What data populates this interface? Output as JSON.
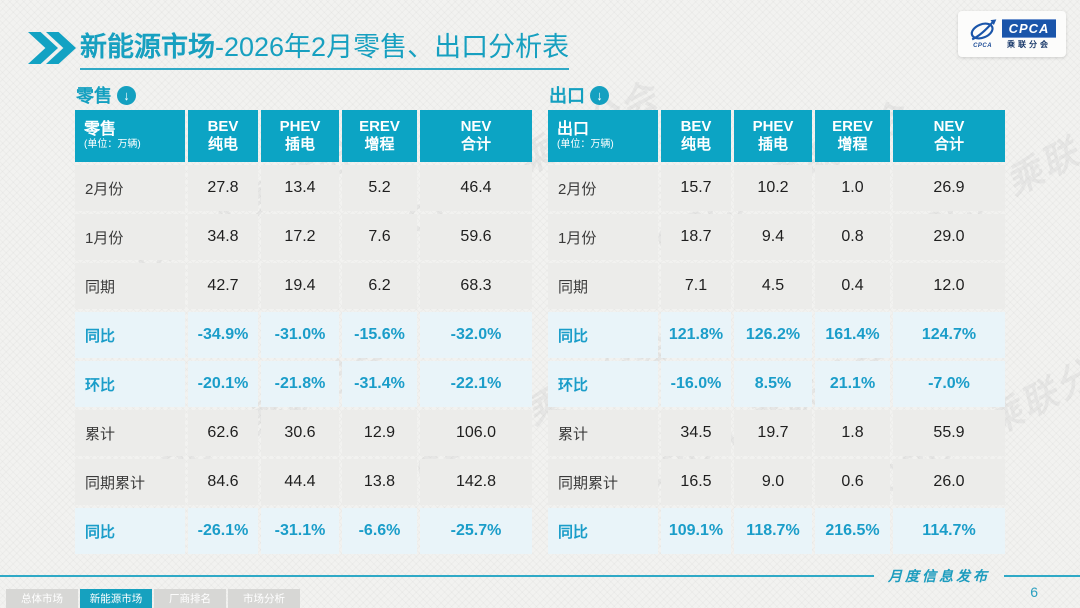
{
  "header": {
    "title_bold": "新能源市场",
    "title_rest": "-2026年2月零售、出口分析表",
    "logo": {
      "brand": "CPCA",
      "brand_sub": "乘联分会",
      "icon_caption": "CPCA"
    }
  },
  "tables": [
    {
      "section_label": "零售",
      "corner_label": "零售",
      "corner_unit": "(单位：万辆)",
      "columns": [
        {
          "line1": "BEV",
          "line2": "纯电"
        },
        {
          "line1": "PHEV",
          "line2": "插电"
        },
        {
          "line1": "EREV",
          "line2": "增程"
        },
        {
          "line1": "NEV",
          "line2": "合计"
        }
      ],
      "rows": [
        {
          "label": "2月份",
          "highlight": false,
          "values": [
            "27.8",
            "13.4",
            "5.2",
            "46.4"
          ]
        },
        {
          "label": "1月份",
          "highlight": false,
          "values": [
            "34.8",
            "17.2",
            "7.6",
            "59.6"
          ]
        },
        {
          "label": "同期",
          "highlight": false,
          "values": [
            "42.7",
            "19.4",
            "6.2",
            "68.3"
          ]
        },
        {
          "label": "同比",
          "highlight": true,
          "values": [
            "-34.9%",
            "-31.0%",
            "-15.6%",
            "-32.0%"
          ]
        },
        {
          "label": "环比",
          "highlight": true,
          "values": [
            "-20.1%",
            "-21.8%",
            "-31.4%",
            "-22.1%"
          ]
        },
        {
          "label": "累计",
          "highlight": false,
          "values": [
            "62.6",
            "30.6",
            "12.9",
            "106.0"
          ]
        },
        {
          "label": "同期累计",
          "highlight": false,
          "values": [
            "84.6",
            "44.4",
            "13.8",
            "142.8"
          ]
        },
        {
          "label": "同比",
          "highlight": true,
          "values": [
            "-26.1%",
            "-31.1%",
            "-6.6%",
            "-25.7%"
          ]
        }
      ]
    },
    {
      "section_label": "出口",
      "corner_label": "出口",
      "corner_unit": "(单位：万辆)",
      "columns": [
        {
          "line1": "BEV",
          "line2": "纯电"
        },
        {
          "line1": "PHEV",
          "line2": "插电"
        },
        {
          "line1": "EREV",
          "line2": "增程"
        },
        {
          "line1": "NEV",
          "line2": "合计"
        }
      ],
      "rows": [
        {
          "label": "2月份",
          "highlight": false,
          "values": [
            "15.7",
            "10.2",
            "1.0",
            "26.9"
          ]
        },
        {
          "label": "1月份",
          "highlight": false,
          "values": [
            "18.7",
            "9.4",
            "0.8",
            "29.0"
          ]
        },
        {
          "label": "同期",
          "highlight": false,
          "values": [
            "7.1",
            "4.5",
            "0.4",
            "12.0"
          ]
        },
        {
          "label": "同比",
          "highlight": true,
          "values": [
            "121.8%",
            "126.2%",
            "161.4%",
            "124.7%"
          ]
        },
        {
          "label": "环比",
          "highlight": true,
          "values": [
            "-16.0%",
            "8.5%",
            "21.1%",
            "-7.0%"
          ]
        },
        {
          "label": "累计",
          "highlight": false,
          "values": [
            "34.5",
            "19.7",
            "1.8",
            "55.9"
          ]
        },
        {
          "label": "同期累计",
          "highlight": false,
          "values": [
            "16.5",
            "9.0",
            "0.6",
            "26.0"
          ]
        },
        {
          "label": "同比",
          "highlight": true,
          "values": [
            "109.1%",
            "118.7%",
            "216.5%",
            "114.7%"
          ]
        }
      ]
    }
  ],
  "chart_data": [
    {
      "type": "table",
      "title": "零售 (单位：万辆)",
      "categories": [
        "BEV纯电",
        "PHEV插电",
        "EREV增程",
        "NEV合计"
      ],
      "series": [
        {
          "name": "2月份",
          "values": [
            27.8,
            13.4,
            5.2,
            46.4
          ]
        },
        {
          "name": "1月份",
          "values": [
            34.8,
            17.2,
            7.6,
            59.6
          ]
        },
        {
          "name": "同期",
          "values": [
            42.7,
            19.4,
            6.2,
            68.3
          ]
        },
        {
          "name": "同比",
          "values": [
            "-34.9%",
            "-31.0%",
            "-15.6%",
            "-32.0%"
          ]
        },
        {
          "name": "环比",
          "values": [
            "-20.1%",
            "-21.8%",
            "-31.4%",
            "-22.1%"
          ]
        },
        {
          "name": "累计",
          "values": [
            62.6,
            30.6,
            12.9,
            106.0
          ]
        },
        {
          "name": "同期累计",
          "values": [
            84.6,
            44.4,
            13.8,
            142.8
          ]
        },
        {
          "name": "同比(累计)",
          "values": [
            "-26.1%",
            "-31.1%",
            "-6.6%",
            "-25.7%"
          ]
        }
      ]
    },
    {
      "type": "table",
      "title": "出口 (单位：万辆)",
      "categories": [
        "BEV纯电",
        "PHEV插电",
        "EREV增程",
        "NEV合计"
      ],
      "series": [
        {
          "name": "2月份",
          "values": [
            15.7,
            10.2,
            1.0,
            26.9
          ]
        },
        {
          "name": "1月份",
          "values": [
            18.7,
            9.4,
            0.8,
            29.0
          ]
        },
        {
          "name": "同期",
          "values": [
            7.1,
            4.5,
            0.4,
            12.0
          ]
        },
        {
          "name": "同比",
          "values": [
            "121.8%",
            "126.2%",
            "161.4%",
            "124.7%"
          ]
        },
        {
          "name": "环比",
          "values": [
            "-16.0%",
            "8.5%",
            "21.1%",
            "-7.0%"
          ]
        },
        {
          "name": "累计",
          "values": [
            34.5,
            19.7,
            1.8,
            55.9
          ]
        },
        {
          "name": "同期累计",
          "values": [
            16.5,
            9.0,
            0.6,
            26.0
          ]
        },
        {
          "name": "同比(累计)",
          "values": [
            "109.1%",
            "118.7%",
            "216.5%",
            "114.7%"
          ]
        }
      ]
    }
  ],
  "footer": {
    "tabs": [
      {
        "label": "总体市场",
        "active": false
      },
      {
        "label": "新能源市场",
        "active": true
      },
      {
        "label": "厂商排名",
        "active": false
      },
      {
        "label": "市场分析",
        "active": false
      }
    ],
    "ribbon_text": "月度信息发布",
    "page_number": "6"
  },
  "watermark_text": "CPCA 乘联分会",
  "colors": {
    "teal_header": "#0ca4c4",
    "teal_title": "#17a0c0",
    "accent_text": "#1a9dc9",
    "row_gray": "#ececea",
    "row_blue": "#e9f4f9",
    "logo_blue": "#1a55aa"
  }
}
